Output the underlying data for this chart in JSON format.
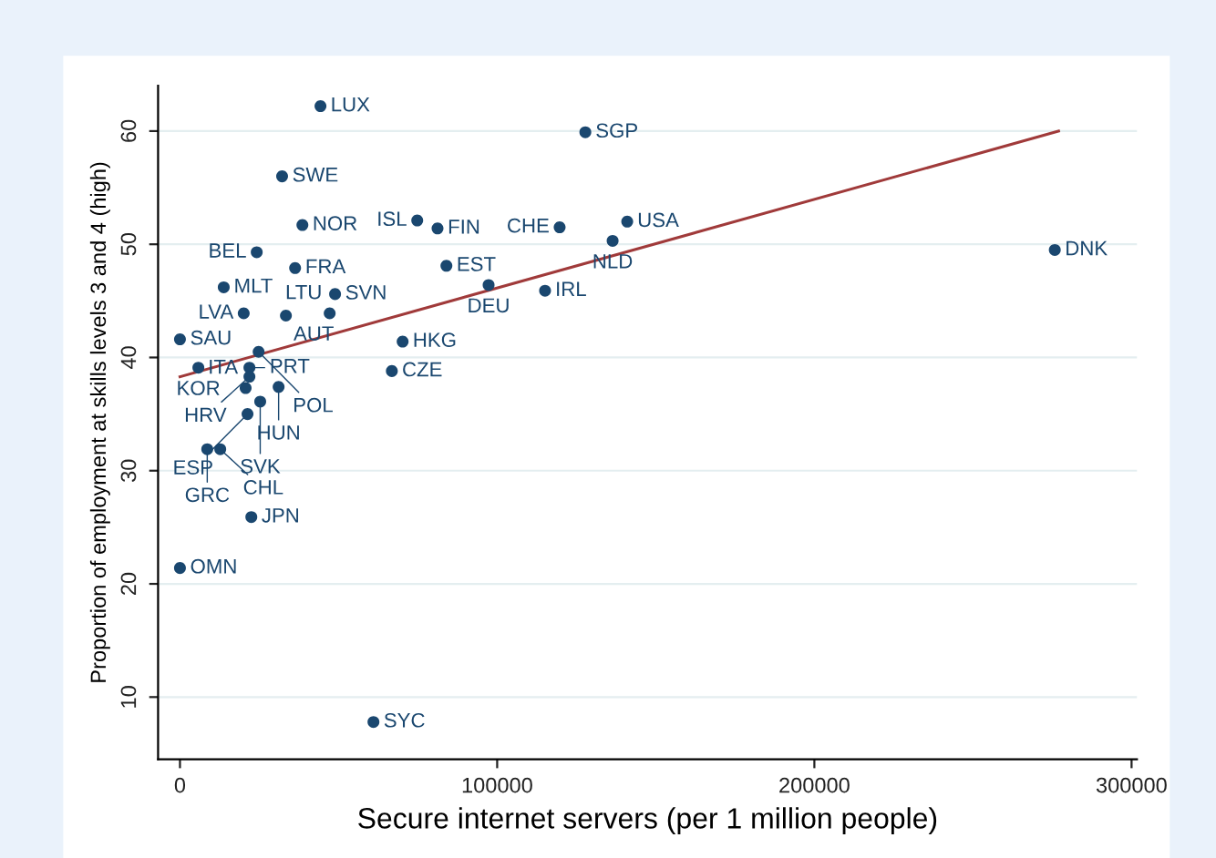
{
  "chart_data": {
    "type": "scatter",
    "xlabel": "Secure internet servers (per 1 million people)",
    "ylabel": "Proportion of employment at skills levels 3 and 4 (high)",
    "xlim": [
      -6900,
      301700
    ],
    "ylim": [
      4.5,
      64
    ],
    "xticks": [
      0,
      100000,
      200000,
      300000
    ],
    "yticks": [
      10,
      20,
      30,
      40,
      50,
      60
    ],
    "grid": "y",
    "marker": "circle",
    "legend": false,
    "series": [
      {
        "type": "scatter",
        "color": "#1a476f",
        "x": [
          44300,
          127800,
          32200,
          38600,
          74800,
          81200,
          119700,
          141000,
          136400,
          275800,
          24200,
          36300,
          84000,
          13800,
          48900,
          97300,
          115100,
          20100,
          33400,
          47200,
          0,
          70200,
          24800,
          5800,
          66800,
          21900,
          21900,
          20700,
          31100,
          25300,
          21300,
          8600,
          12700,
          22500,
          0,
          61000
        ],
        "values": [
          62.2,
          59.9,
          56.0,
          51.7,
          52.1,
          51.4,
          51.5,
          52.0,
          50.3,
          49.5,
          49.3,
          47.9,
          48.1,
          46.2,
          45.6,
          46.4,
          45.9,
          43.9,
          43.7,
          43.9,
          41.6,
          41.4,
          40.5,
          39.1,
          38.8,
          39.1,
          38.3,
          37.3,
          37.4,
          36.1,
          35.0,
          31.9,
          31.9,
          25.9,
          21.4,
          7.8
        ]
      },
      {
        "type": "line",
        "color": "#a03a3a",
        "x": [
          0,
          277000
        ],
        "values": [
          38.3,
          60.0
        ],
        "marker": "none",
        "line_style": "solid"
      }
    ],
    "annotations": [
      {
        "text": "LUX",
        "x": 44300,
        "y": 62.2
      },
      {
        "text": "SGP",
        "x": 127800,
        "y": 59.9
      },
      {
        "text": "SWE",
        "x": 32200,
        "y": 56.0
      },
      {
        "text": "NOR",
        "x": 38600,
        "y": 51.7
      },
      {
        "text": "ISL",
        "x": 74800,
        "y": 52.1
      },
      {
        "text": "FIN",
        "x": 81200,
        "y": 51.4
      },
      {
        "text": "CHE",
        "x": 119700,
        "y": 51.5
      },
      {
        "text": "USA",
        "x": 141000,
        "y": 52.0
      },
      {
        "text": "NLD",
        "x": 136400,
        "y": 50.3
      },
      {
        "text": "DNK",
        "x": 275800,
        "y": 49.5
      },
      {
        "text": "BEL",
        "x": 24200,
        "y": 49.3
      },
      {
        "text": "FRA",
        "x": 36300,
        "y": 47.9
      },
      {
        "text": "EST",
        "x": 84000,
        "y": 48.1
      },
      {
        "text": "MLT",
        "x": 13800,
        "y": 46.2
      },
      {
        "text": "SVN",
        "x": 48900,
        "y": 45.6
      },
      {
        "text": "DEU",
        "x": 97300,
        "y": 46.4
      },
      {
        "text": "IRL",
        "x": 115100,
        "y": 45.9
      },
      {
        "text": "LVA",
        "x": 20100,
        "y": 43.9
      },
      {
        "text": "AUT",
        "x": 33400,
        "y": 43.7
      },
      {
        "text": "LTU",
        "x": 47200,
        "y": 43.9
      },
      {
        "text": "SAU",
        "x": 0,
        "y": 41.6
      },
      {
        "text": "HKG",
        "x": 70200,
        "y": 41.4
      },
      {
        "text": "POL",
        "x": 24800,
        "y": 40.5
      },
      {
        "text": "KOR",
        "x": 5800,
        "y": 39.1
      },
      {
        "text": "CZE",
        "x": 66800,
        "y": 38.8
      },
      {
        "text": "PRT",
        "x": 21900,
        "y": 39.1
      },
      {
        "text": "HRV",
        "x": 21900,
        "y": 38.3
      },
      {
        "text": "ITA",
        "x": 20700,
        "y": 37.3
      },
      {
        "text": "HUN",
        "x": 31100,
        "y": 37.4
      },
      {
        "text": "SVK",
        "x": 25300,
        "y": 36.1
      },
      {
        "text": "ESP",
        "x": 21300,
        "y": 35.0
      },
      {
        "text": "GRC",
        "x": 8600,
        "y": 31.9
      },
      {
        "text": "CHL",
        "x": 12700,
        "y": 31.9
      },
      {
        "text": "JPN",
        "x": 22500,
        "y": 25.9
      },
      {
        "text": "OMN",
        "x": 0,
        "y": 21.4
      },
      {
        "text": "SYC",
        "x": 61000,
        "y": 7.8
      }
    ]
  }
}
